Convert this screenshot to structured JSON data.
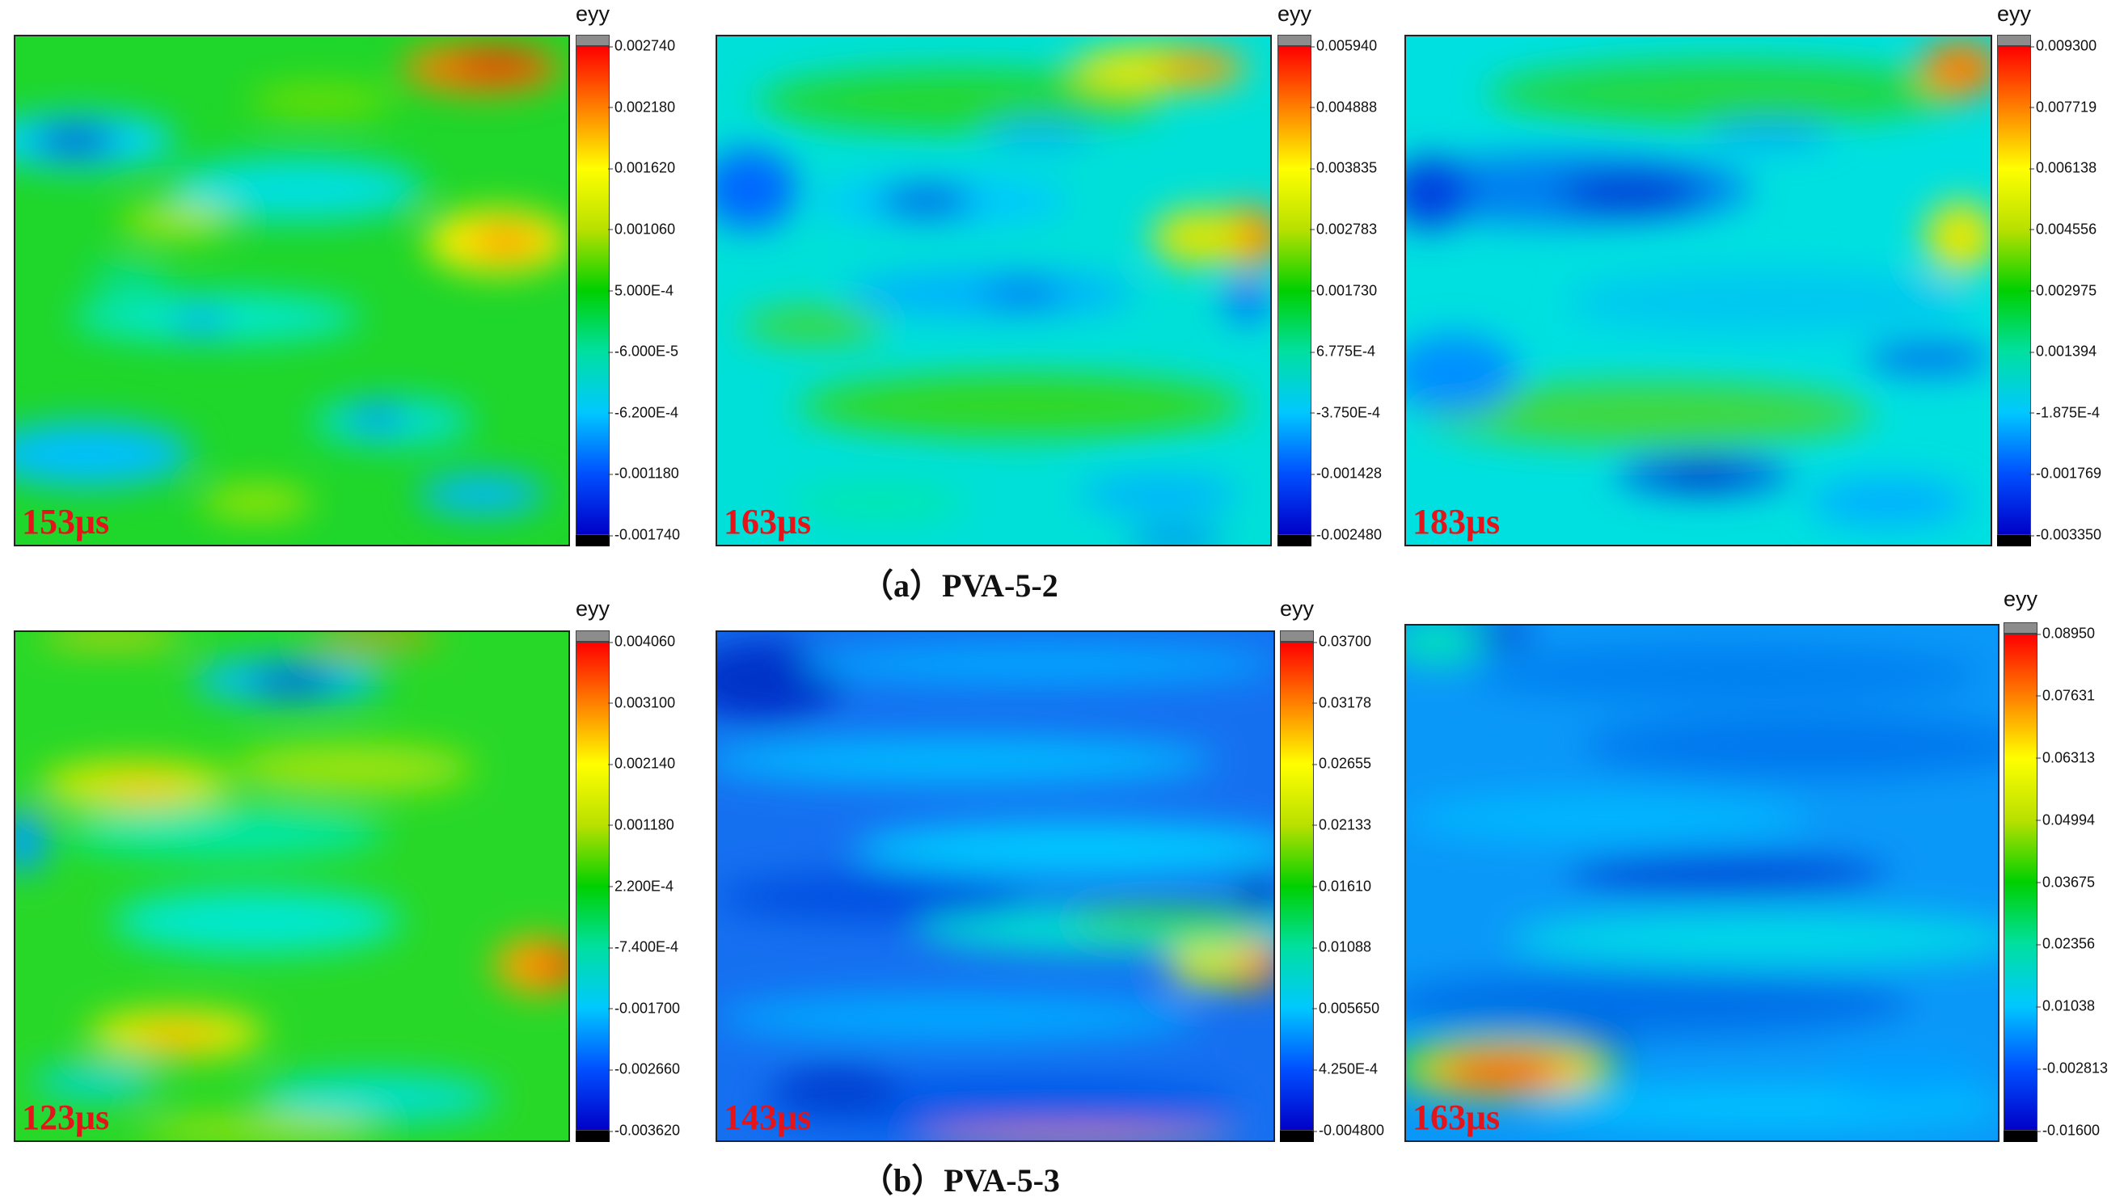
{
  "figure": {
    "rows": [
      {
        "caption": "（a）PVA-5-2",
        "panels": [
          {
            "time": "153μs",
            "colorbar": {
              "title": "eyy",
              "ticks": [
                "0.002740",
                "0.002180",
                "0.001620",
                "0.001060",
                "5.000E-4",
                "-6.000E-5",
                "-6.200E-4",
                "-0.001180",
                "-0.001740"
              ]
            }
          },
          {
            "time": "163μs",
            "colorbar": {
              "title": "eyy",
              "ticks": [
                "0.005940",
                "0.004888",
                "0.003835",
                "0.002783",
                "0.001730",
                "6.775E-4",
                "-3.750E-4",
                "-0.001428",
                "-0.002480"
              ]
            }
          },
          {
            "time": "183μs",
            "colorbar": {
              "title": "eyy",
              "ticks": [
                "0.009300",
                "0.007719",
                "0.006138",
                "0.004556",
                "0.002975",
                "0.001394",
                "-1.875E-4",
                "-0.001769",
                "-0.003350"
              ]
            }
          }
        ]
      },
      {
        "caption": "（b）PVA-5-3",
        "panels": [
          {
            "time": "123μs",
            "colorbar": {
              "title": "eyy",
              "ticks": [
                "0.004060",
                "0.003100",
                "0.002140",
                "0.001180",
                "2.200E-4",
                "-7.400E-4",
                "-0.001700",
                "-0.002660",
                "-0.003620"
              ]
            }
          },
          {
            "time": "143μs",
            "colorbar": {
              "title": "eyy",
              "ticks": [
                "0.03700",
                "0.03178",
                "0.02655",
                "0.02133",
                "0.01610",
                "0.01088",
                "0.005650",
                "4.250E-4",
                "-0.004800"
              ]
            }
          },
          {
            "time": "163μs",
            "colorbar": {
              "title": "eyy",
              "ticks": [
                "0.08950",
                "0.07631",
                "0.06313",
                "0.04994",
                "0.03675",
                "0.02356",
                "0.01038",
                "-0.002813",
                "-0.01600"
              ]
            }
          }
        ]
      }
    ],
    "colormap": [
      "#0000c8",
      "#0050ff",
      "#00c8ff",
      "#00e0a0",
      "#00d000",
      "#b8e000",
      "#ffff00",
      "#ff8000",
      "#ff0000"
    ]
  }
}
